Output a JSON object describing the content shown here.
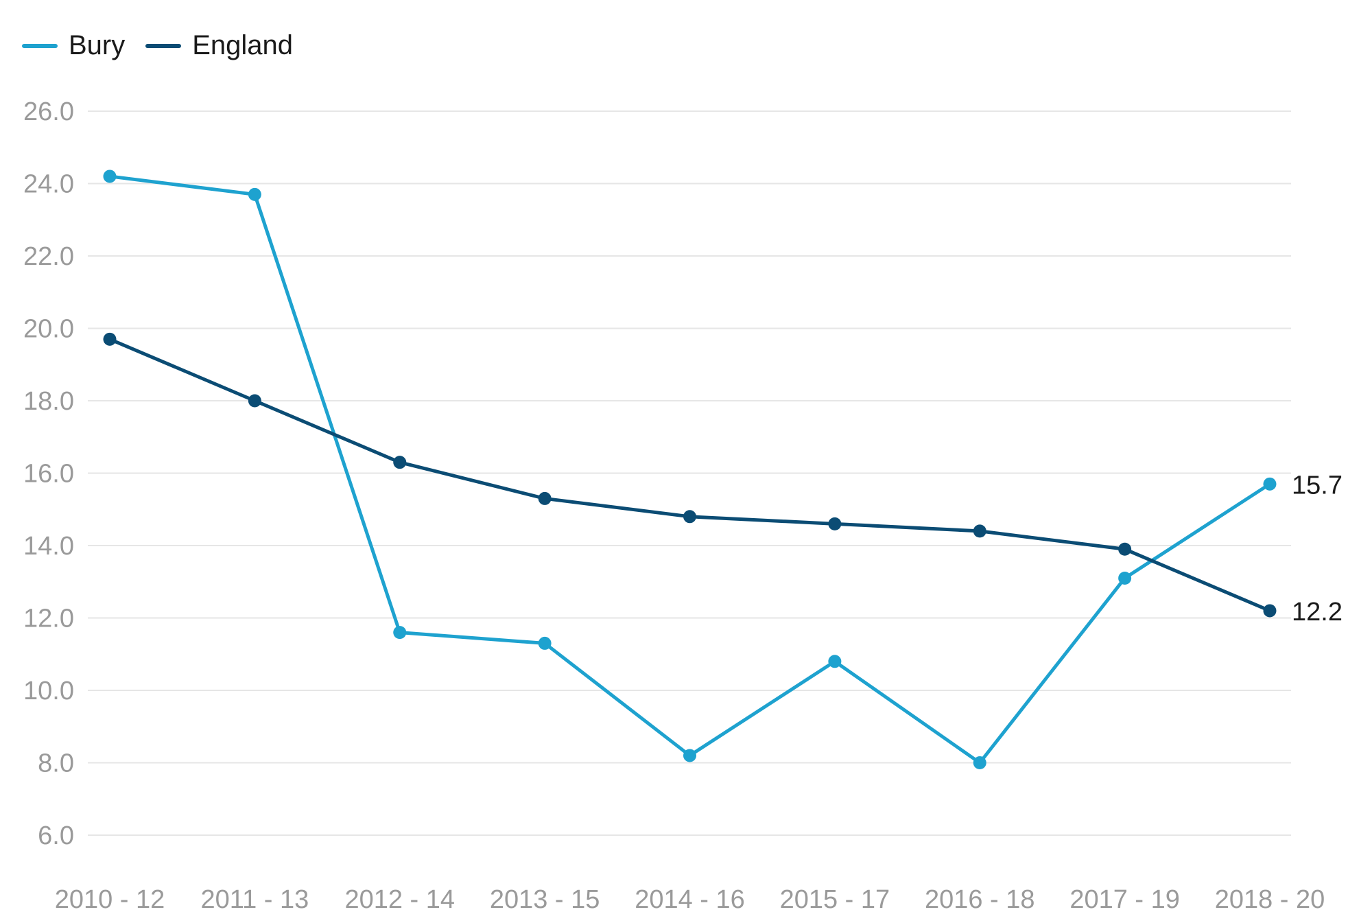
{
  "chart_data": {
    "type": "line",
    "title": "",
    "xlabel": "",
    "ylabel": "",
    "categories": [
      "2010 - 12",
      "2011 - 13",
      "2012 - 14",
      "2013 - 15",
      "2014 - 16",
      "2015 - 17",
      "2016 - 18",
      "2017 - 19",
      "2018 - 20"
    ],
    "series": [
      {
        "name": "Bury",
        "color": "#1ea2cf",
        "values": [
          24.2,
          23.7,
          11.6,
          11.3,
          8.2,
          10.8,
          8.0,
          13.1,
          15.7
        ]
      },
      {
        "name": "England",
        "color": "#0b4c74",
        "values": [
          19.7,
          18.0,
          16.3,
          15.3,
          14.8,
          14.6,
          14.4,
          13.9,
          12.2
        ]
      }
    ],
    "ylim": [
      6,
      26
    ],
    "yticks": [
      "6.0",
      "8.0",
      "10.0",
      "12.0",
      "14.0",
      "16.0",
      "18.0",
      "20.0",
      "22.0",
      "24.0",
      "26.0"
    ],
    "grid": true,
    "legend_position": "top-left",
    "end_labels": [
      "15.7",
      "12.2"
    ]
  }
}
